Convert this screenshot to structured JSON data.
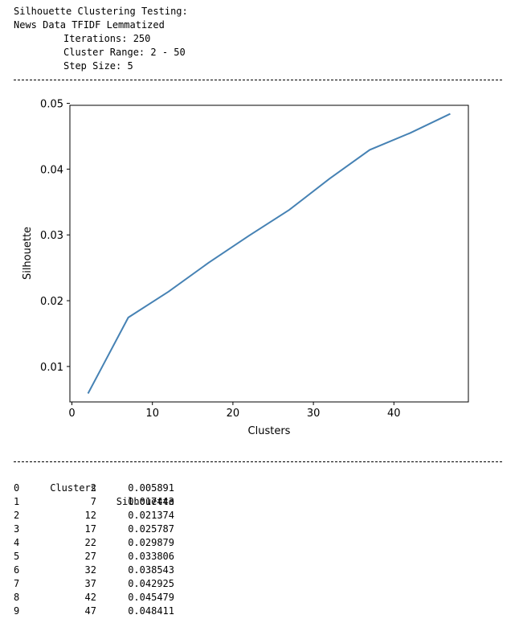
{
  "header": {
    "line1": "Silhouette Clustering Testing:",
    "line2": "News Data TFIDF Lemmatized",
    "line3": "Iterations: 250",
    "line4": "Cluster Range: 2 - 50",
    "line5": "Step Size: 5"
  },
  "chart_data": {
    "type": "line",
    "xlabel": "Clusters",
    "ylabel": "Silhouette",
    "xlim": [
      -0.25,
      49.25
    ],
    "ylim": [
      0.00461,
      0.0497
    ],
    "xticks": [
      0,
      10,
      20,
      30,
      40
    ],
    "yticks": [
      0.01,
      0.02,
      0.03,
      0.04,
      0.05
    ],
    "line_color": "#4682b4",
    "grid": false,
    "x": [
      2,
      7,
      12,
      17,
      22,
      27,
      32,
      37,
      42,
      47
    ],
    "y": [
      0.005891,
      0.017443,
      0.021374,
      0.025787,
      0.029879,
      0.033806,
      0.038543,
      0.042925,
      0.045479,
      0.048411
    ]
  },
  "table": {
    "col_clusters": "Clusters",
    "col_silhouette": "Silhouette",
    "rows": [
      {
        "index": "0",
        "clusters": "2",
        "silhouette": "0.005891"
      },
      {
        "index": "1",
        "clusters": "7",
        "silhouette": "0.017443"
      },
      {
        "index": "2",
        "clusters": "12",
        "silhouette": "0.021374"
      },
      {
        "index": "3",
        "clusters": "17",
        "silhouette": "0.025787"
      },
      {
        "index": "4",
        "clusters": "22",
        "silhouette": "0.029879"
      },
      {
        "index": "5",
        "clusters": "27",
        "silhouette": "0.033806"
      },
      {
        "index": "6",
        "clusters": "32",
        "silhouette": "0.038543"
      },
      {
        "index": "7",
        "clusters": "37",
        "silhouette": "0.042925"
      },
      {
        "index": "8",
        "clusters": "42",
        "silhouette": "0.045479"
      },
      {
        "index": "9",
        "clusters": "47",
        "silhouette": "0.048411"
      }
    ]
  }
}
